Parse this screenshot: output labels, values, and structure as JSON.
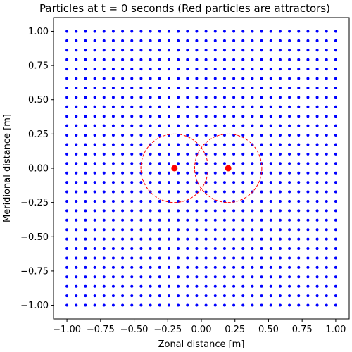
{
  "chart_data": {
    "type": "scatter",
    "title": "Particles at t = 0 seconds (Red particles are attractors)",
    "xlabel": "Zonal distance [m]",
    "ylabel": "Meridional distance [m]",
    "xlim": [
      -1.1,
      1.1
    ],
    "ylim": [
      -1.1,
      1.1
    ],
    "xticks": [
      -1.0,
      -0.75,
      -0.5,
      -0.25,
      0.0,
      0.25,
      0.5,
      0.75,
      1.0
    ],
    "xtick_labels": [
      "−1.00",
      "−0.75",
      "−0.50",
      "−0.25",
      "0.00",
      "0.25",
      "0.50",
      "0.75",
      "1.00"
    ],
    "yticks": [
      -1.0,
      -0.75,
      -0.5,
      -0.25,
      0.0,
      0.25,
      0.5,
      0.75,
      1.0
    ],
    "ytick_labels": [
      "−1.00",
      "−0.75",
      "−0.50",
      "−0.25",
      "0.00",
      "0.25",
      "0.50",
      "0.75",
      "1.00"
    ],
    "grid": false,
    "series": [
      {
        "role": "particles",
        "color": "#0000ff",
        "grid_points": {
          "start": -1.0,
          "stop": 1.0,
          "count": 30
        }
      },
      {
        "role": "attractors",
        "color": "#ff0000",
        "points": [
          {
            "x": -0.2,
            "y": 0.0
          },
          {
            "x": 0.2,
            "y": 0.0
          }
        ]
      }
    ],
    "annotations": [
      {
        "shape": "circle",
        "style": "dashed",
        "color": "#ff0000",
        "cx": -0.2,
        "cy": 0.0,
        "r": 0.25
      },
      {
        "shape": "circle",
        "style": "dashed",
        "color": "#ff0000",
        "cx": 0.2,
        "cy": 0.0,
        "r": 0.25
      }
    ]
  }
}
